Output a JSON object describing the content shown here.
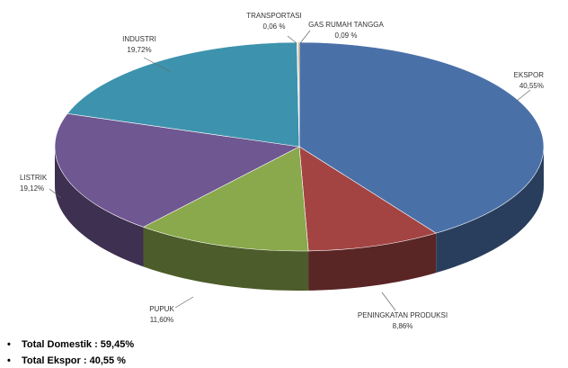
{
  "chart_data": {
    "type": "pie",
    "categories": [
      "EKSPOR",
      "PENINGKATAN PRODUKSI",
      "PUPUK",
      "LISTRIK",
      "INDUSTRI",
      "TRANSPORTASI",
      "GAS RUMAH TANGGA"
    ],
    "values": [
      40.55,
      8.86,
      11.6,
      19.12,
      19.72,
      0.06,
      0.09
    ],
    "value_labels": [
      "40,55%",
      "8,86%",
      "11,60%",
      "19,12%",
      "19,72%",
      "0,06 %",
      "0,09 %"
    ],
    "colors": [
      "#4a70a8",
      "#a34443",
      "#8aa84c",
      "#6f5792",
      "#3d93ad",
      "#b8b8b8",
      "#d0a24a"
    ],
    "notes": [
      "Total Domestik : 59,45%",
      "Total Ekspor : 40,55 %"
    ]
  }
}
